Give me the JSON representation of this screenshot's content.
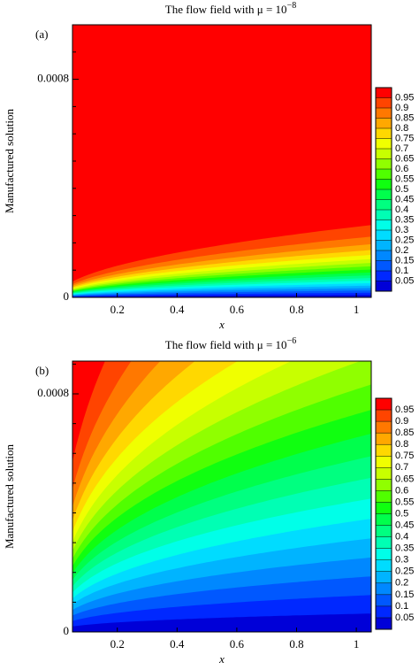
{
  "chart_data": [
    {
      "type": "contour",
      "panel_label": "(a)",
      "title": "The flow field with μ = 10",
      "title_exponent": "−8",
      "xlabel": "x",
      "ylabel": "Manufactured solution",
      "xlim": [
        0.05,
        1.05
      ],
      "xticks": [
        0.2,
        0.4,
        0.6,
        0.8,
        1
      ],
      "ylim": [
        0,
        0.001
      ],
      "yticks": [
        0,
        0.0008
      ],
      "minor_yticks": [
        0.0001,
        0.0002,
        0.0003,
        0.0004,
        0.0005,
        0.0006,
        0.0007,
        0.0009
      ],
      "colorbar_ticks": [
        0.05,
        0.1,
        0.15,
        0.2,
        0.25,
        0.3,
        0.35,
        0.4,
        0.45,
        0.5,
        0.55,
        0.6,
        0.65,
        0.7,
        0.75,
        0.8,
        0.85,
        0.9,
        0.95
      ],
      "colors": [
        "#0000d8",
        "#0028ff",
        "#0058ff",
        "#0088ff",
        "#00b4ff",
        "#00dcff",
        "#00ffe8",
        "#00ffb4",
        "#00ff80",
        "#00ff4c",
        "#10ff10",
        "#50ff00",
        "#90ff00",
        "#c8ff00",
        "#f0ff00",
        "#ffd800",
        "#ffa800",
        "#ff7800",
        "#ff4400",
        "#ff0000"
      ]
    },
    {
      "type": "contour",
      "panel_label": "(b)",
      "title": "The flow field with μ = 10",
      "title_exponent": "−6",
      "xlabel": "x",
      "ylabel": "Manufactured solution",
      "xlim": [
        0.05,
        1.05
      ],
      "xticks": [
        0.2,
        0.4,
        0.6,
        0.8,
        1
      ],
      "ylim": [
        0,
        0.00091
      ],
      "yticks": [
        0,
        0.0008
      ],
      "minor_yticks": [
        0.0001,
        0.0002,
        0.0003,
        0.0004,
        0.0005,
        0.0006,
        0.0007,
        0.0009
      ],
      "colorbar_ticks": [
        0.05,
        0.1,
        0.15,
        0.2,
        0.25,
        0.3,
        0.35,
        0.4,
        0.45,
        0.5,
        0.55,
        0.6,
        0.65,
        0.7,
        0.75,
        0.8,
        0.85,
        0.9,
        0.95
      ],
      "colors": [
        "#0000d8",
        "#0028ff",
        "#0058ff",
        "#0088ff",
        "#00b4ff",
        "#00dcff",
        "#00ffe8",
        "#00ffb4",
        "#00ff80",
        "#00ff4c",
        "#10ff10",
        "#50ff00",
        "#90ff00",
        "#c8ff00",
        "#f0ff00",
        "#ffd800",
        "#ffa800",
        "#ff7800",
        "#ff4400",
        "#ff0000"
      ]
    }
  ]
}
